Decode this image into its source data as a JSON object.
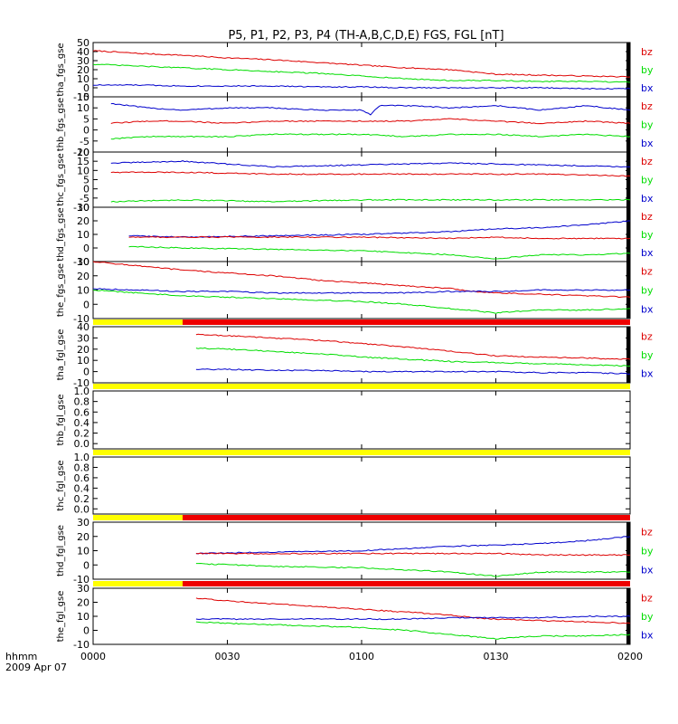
{
  "title": "P5, P1, P2, P3, P4 (TH-A,B,C,D,E) FGS, FGL [nT]",
  "time_axis": {
    "ticks": [
      "0000",
      "0030",
      "0100",
      "0130",
      "0200"
    ],
    "tick_minutes": [
      0,
      30,
      60,
      90,
      120
    ],
    "label_line1": "hhmm",
    "label_line2": "2009 Apr 07"
  },
  "colors": {
    "bx": "#0000cc",
    "by": "#00dd00",
    "bz": "#dd0000",
    "bar_yellow": "#ffff00",
    "bar_red": "#ee0000"
  },
  "chart_data": [
    {
      "type": "line",
      "ylabel": "tha_fgs_gse",
      "ylim": [
        -10,
        50
      ],
      "yticks": [
        "50",
        "40",
        "30",
        "20",
        "10",
        "0",
        "-10"
      ],
      "legend": [
        "bz",
        "by",
        "bx"
      ],
      "series": [
        {
          "name": "bz",
          "x": [
            0,
            10,
            20,
            30,
            40,
            50,
            60,
            70,
            80,
            90,
            100,
            110,
            120
          ],
          "values": [
            41,
            38,
            36,
            33,
            31,
            28,
            25,
            22,
            20,
            15,
            14,
            13,
            12
          ]
        },
        {
          "name": "by",
          "x": [
            0,
            10,
            20,
            30,
            40,
            50,
            60,
            70,
            80,
            90,
            100,
            110,
            120
          ],
          "values": [
            26,
            24,
            22,
            20,
            18,
            16,
            13,
            10,
            8,
            8,
            7,
            7,
            6
          ]
        },
        {
          "name": "bx",
          "x": [
            0,
            10,
            20,
            30,
            40,
            50,
            60,
            70,
            80,
            90,
            100,
            110,
            120
          ],
          "values": [
            3,
            3,
            2,
            2,
            2,
            1,
            1,
            0,
            0,
            0,
            0,
            -1,
            -1
          ]
        }
      ]
    },
    {
      "type": "line",
      "ylabel": "thb_fgs_gse",
      "ylim": [
        -10,
        15
      ],
      "yticks": [
        "15",
        "10",
        "5",
        "0",
        "-5",
        "-10"
      ],
      "legend": [
        "bz",
        "by",
        "bx"
      ],
      "series": [
        {
          "name": "bx",
          "x": [
            4,
            12,
            20,
            30,
            40,
            50,
            60,
            62,
            64,
            70,
            80,
            90,
            100,
            110,
            120
          ],
          "values": [
            12,
            10,
            9,
            10,
            10,
            9,
            9,
            7,
            11,
            11,
            10,
            11,
            9,
            11,
            9
          ]
        },
        {
          "name": "bz",
          "x": [
            4,
            12,
            20,
            30,
            40,
            50,
            60,
            70,
            80,
            90,
            100,
            110,
            120
          ],
          "values": [
            3,
            4,
            4,
            3,
            4,
            4,
            4,
            4,
            5,
            4,
            3,
            4,
            3
          ]
        },
        {
          "name": "by",
          "x": [
            4,
            12,
            20,
            30,
            40,
            50,
            60,
            70,
            80,
            90,
            100,
            110,
            120
          ],
          "values": [
            -4,
            -3,
            -3,
            -3,
            -2,
            -2,
            -2,
            -3,
            -2,
            -2,
            -3,
            -2,
            -3
          ]
        }
      ]
    },
    {
      "type": "line",
      "ylabel": "thc_fgs_gse",
      "ylim": [
        -10,
        20
      ],
      "yticks": [
        "20",
        "15",
        "10",
        "5",
        "0",
        "-5",
        "-10"
      ],
      "legend": [
        "bz",
        "by",
        "bx"
      ],
      "series": [
        {
          "name": "bx",
          "x": [
            4,
            20,
            40,
            60,
            80,
            100,
            120
          ],
          "values": [
            14,
            15,
            12,
            13,
            14,
            13,
            12
          ]
        },
        {
          "name": "bz",
          "x": [
            4,
            20,
            40,
            60,
            80,
            100,
            120
          ],
          "values": [
            9,
            9,
            8,
            8,
            8,
            8,
            7
          ]
        },
        {
          "name": "by",
          "x": [
            4,
            20,
            40,
            60,
            80,
            100,
            120
          ],
          "values": [
            -7,
            -6,
            -7,
            -6,
            -6,
            -6,
            -6
          ]
        }
      ]
    },
    {
      "type": "line",
      "ylabel": "thd_fgs_gse",
      "ylim": [
        -10,
        30
      ],
      "yticks": [
        "30",
        "20",
        "10",
        "0",
        "-10"
      ],
      "legend": [
        "bz",
        "by",
        "bx"
      ],
      "series": [
        {
          "name": "bx",
          "x": [
            8,
            20,
            40,
            60,
            80,
            90,
            100,
            110,
            120
          ],
          "values": [
            9,
            8,
            9,
            10,
            12,
            14,
            15,
            17,
            20
          ]
        },
        {
          "name": "bz",
          "x": [
            8,
            20,
            40,
            60,
            80,
            90,
            100,
            110,
            120
          ],
          "values": [
            8,
            8,
            8,
            8,
            7,
            8,
            7,
            7,
            7
          ]
        },
        {
          "name": "by",
          "x": [
            8,
            20,
            40,
            60,
            80,
            90,
            100,
            110,
            120
          ],
          "values": [
            1,
            0,
            -1,
            -2,
            -5,
            -8,
            -5,
            -5,
            -4
          ]
        }
      ]
    },
    {
      "type": "line",
      "ylabel": "the_fgs_gse",
      "ylim": [
        -10,
        30
      ],
      "yticks": [
        "30",
        "20",
        "10",
        "0",
        "-10"
      ],
      "legend": [
        "bz",
        "by",
        "bx"
      ],
      "series": [
        {
          "name": "bz",
          "x": [
            0,
            10,
            20,
            30,
            40,
            50,
            60,
            70,
            80,
            85,
            90,
            100,
            110,
            120
          ],
          "values": [
            30,
            27,
            24,
            22,
            20,
            17,
            15,
            13,
            11,
            9,
            8,
            7,
            6,
            5
          ]
        },
        {
          "name": "bx",
          "x": [
            0,
            10,
            20,
            30,
            40,
            50,
            60,
            70,
            80,
            90,
            100,
            110,
            120
          ],
          "values": [
            11,
            10,
            9,
            9,
            8,
            8,
            8,
            8,
            9,
            9,
            10,
            10,
            10
          ]
        },
        {
          "name": "by",
          "x": [
            0,
            10,
            20,
            30,
            40,
            50,
            60,
            70,
            80,
            90,
            100,
            110,
            120
          ],
          "values": [
            10,
            8,
            6,
            5,
            4,
            3,
            2,
            0,
            -3,
            -6,
            -4,
            -4,
            -3
          ]
        }
      ]
    },
    {
      "type": "line",
      "ylabel": "tha_fgl_gse",
      "ylim": [
        -10,
        40
      ],
      "yticks": [
        "40",
        "30",
        "20",
        "10",
        "0",
        "-10"
      ],
      "legend": [
        "bz",
        "by",
        "bx"
      ],
      "bar": [
        {
          "to": 20,
          "color": "yellow"
        },
        {
          "to": 120,
          "color": "red"
        }
      ],
      "series": [
        {
          "name": "bz",
          "x": [
            23,
            30,
            40,
            50,
            60,
            70,
            80,
            90,
            100,
            110,
            120
          ],
          "values": [
            33,
            32,
            30,
            28,
            25,
            22,
            18,
            14,
            13,
            12,
            11
          ]
        },
        {
          "name": "by",
          "x": [
            23,
            30,
            40,
            50,
            60,
            70,
            80,
            90,
            100,
            110,
            120
          ],
          "values": [
            21,
            20,
            18,
            16,
            13,
            11,
            9,
            8,
            7,
            6,
            5
          ]
        },
        {
          "name": "bx",
          "x": [
            23,
            30,
            40,
            50,
            60,
            70,
            80,
            90,
            100,
            110,
            120
          ],
          "values": [
            2,
            2,
            1,
            1,
            0,
            0,
            0,
            0,
            -1,
            -1,
            -2
          ]
        }
      ]
    },
    {
      "type": "line",
      "ylabel": "thb_fgl_gse",
      "ylim": [
        -0.1,
        1.0
      ],
      "yticks": [
        "1.0",
        "0.8",
        "0.6",
        "0.4",
        "0.2",
        "0.0"
      ],
      "bar": [
        {
          "to": 120,
          "color": "yellow"
        }
      ],
      "series": []
    },
    {
      "type": "line",
      "ylabel": "thc_fgl_gse",
      "ylim": [
        -0.1,
        1.0
      ],
      "yticks": [
        "1.0",
        "0.8",
        "0.6",
        "0.4",
        "0.2",
        "0.0"
      ],
      "bar": [
        {
          "to": 120,
          "color": "yellow"
        }
      ],
      "series": []
    },
    {
      "type": "line",
      "ylabel": "thd_fgl_gse",
      "ylim": [
        -10,
        30
      ],
      "yticks": [
        "30",
        "20",
        "10",
        "0",
        "-10"
      ],
      "legend": [
        "bz",
        "by",
        "bx"
      ],
      "bar": [
        {
          "to": 20,
          "color": "yellow"
        },
        {
          "to": 120,
          "color": "red"
        }
      ],
      "series": [
        {
          "name": "bx",
          "x": [
            23,
            40,
            60,
            80,
            90,
            100,
            110,
            120
          ],
          "values": [
            8,
            9,
            10,
            13,
            14,
            15,
            17,
            20
          ]
        },
        {
          "name": "bz",
          "x": [
            23,
            40,
            60,
            80,
            90,
            100,
            110,
            120
          ],
          "values": [
            8,
            8,
            8,
            8,
            8,
            7,
            7,
            7
          ]
        },
        {
          "name": "by",
          "x": [
            23,
            40,
            60,
            80,
            90,
            100,
            110,
            120
          ],
          "values": [
            1,
            -1,
            -2,
            -5,
            -8,
            -5,
            -5,
            -5
          ]
        }
      ]
    },
    {
      "type": "line",
      "ylabel": "the_fgl_gse",
      "ylim": [
        -10,
        30
      ],
      "yticks": [
        "30",
        "20",
        "10",
        "0",
        "-10"
      ],
      "legend": [
        "bz",
        "by",
        "bx"
      ],
      "bar": [
        {
          "to": 20,
          "color": "yellow"
        },
        {
          "to": 120,
          "color": "red"
        }
      ],
      "series": [
        {
          "name": "bz",
          "x": [
            23,
            30,
            40,
            50,
            60,
            70,
            80,
            85,
            90,
            100,
            110,
            120
          ],
          "values": [
            23,
            21,
            19,
            17,
            15,
            13,
            11,
            9,
            8,
            7,
            6,
            5
          ]
        },
        {
          "name": "bx",
          "x": [
            23,
            30,
            40,
            50,
            60,
            70,
            80,
            90,
            100,
            110,
            120
          ],
          "values": [
            8,
            8,
            8,
            8,
            8,
            8,
            9,
            9,
            9,
            10,
            10
          ]
        },
        {
          "name": "by",
          "x": [
            23,
            30,
            40,
            50,
            60,
            70,
            80,
            90,
            100,
            110,
            120
          ],
          "values": [
            6,
            5,
            4,
            3,
            2,
            0,
            -3,
            -6,
            -4,
            -4,
            -3
          ]
        }
      ]
    }
  ]
}
